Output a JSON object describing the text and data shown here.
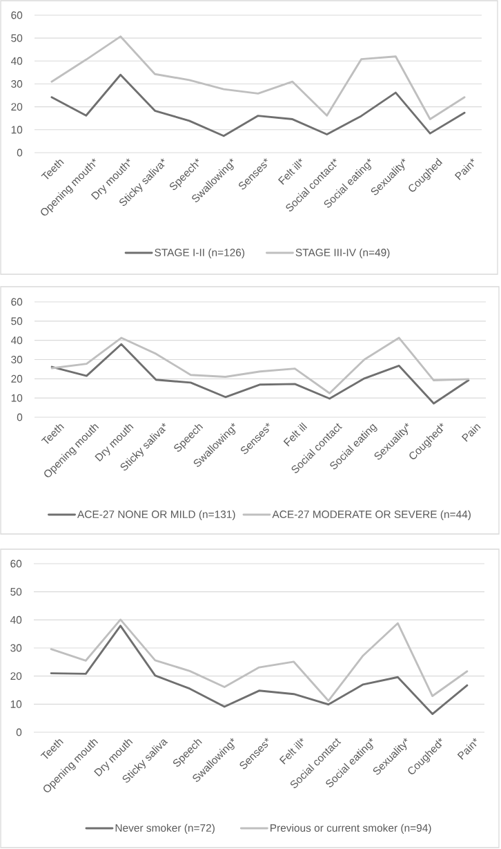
{
  "chart_data": [
    {
      "type": "line",
      "categories": [
        "Teeth",
        "Opening mouth*",
        "Dry mouth*",
        "Sticky saliva*",
        "Speech*",
        "Swallowing*",
        "Senses*",
        "Felt ill*",
        "Social contact*",
        "Social eating*",
        "Sexuality*",
        "Coughed",
        "Pain*"
      ],
      "series": [
        {
          "name": "STAGE I-II (n=126)",
          "color": "#6f6f6f",
          "values": [
            24.2,
            16.2,
            34.0,
            18.3,
            13.9,
            7.3,
            16.1,
            14.6,
            8.0,
            16.0,
            26.2,
            8.4,
            17.4
          ]
        },
        {
          "name": "STAGE III-IV (n=49)",
          "color": "#bfbfbf",
          "values": [
            31.0,
            40.6,
            50.7,
            34.3,
            31.7,
            27.7,
            25.8,
            31.0,
            16.2,
            40.8,
            42.0,
            14.6,
            24.2
          ]
        }
      ],
      "ylim": [
        0,
        60
      ],
      "yticks": [
        0,
        10,
        20,
        30,
        40,
        50,
        60
      ],
      "grid": "y",
      "legend": "bottom"
    },
    {
      "type": "line",
      "categories": [
        "Teeth",
        "Opening mouth",
        "Dry mouth",
        "Sticky saliva*",
        "Speech",
        "Swallowing*",
        "Senses*",
        "Felt ill",
        "Social contact",
        "Social eating",
        "Sexuality*",
        "Coughed*",
        "Pain"
      ],
      "series": [
        {
          "name": "ACE-27 NONE OR MILD (n=131)",
          "color": "#6f6f6f",
          "values": [
            26.2,
            21.5,
            38.0,
            19.5,
            18.0,
            10.5,
            17.0,
            17.3,
            9.7,
            20.2,
            26.8,
            7.2,
            19.2
          ]
        },
        {
          "name": "ACE-27 MODERATE OR SEVERE (n=44)",
          "color": "#bfbfbf",
          "values": [
            25.5,
            27.8,
            41.3,
            33.0,
            22.0,
            21.0,
            23.8,
            25.3,
            12.5,
            30.0,
            41.3,
            19.2,
            19.8
          ]
        }
      ],
      "ylim": [
        0,
        60
      ],
      "yticks": [
        0,
        10,
        20,
        30,
        40,
        50,
        60
      ],
      "grid": "y",
      "legend": "bottom"
    },
    {
      "type": "line",
      "categories": [
        "Teeth",
        "Opening mouth",
        "Dry mouth",
        "Sticky saliva",
        "Speech",
        "Swallowing*",
        "Senses*",
        "Felt ill*",
        "Social contact",
        "Social eating*",
        "Sexuality*",
        "Coughed*",
        "Pain*"
      ],
      "series": [
        {
          "name": "Never smoker (n=72)",
          "color": "#6f6f6f",
          "values": [
            21.0,
            20.8,
            37.9,
            20.2,
            15.5,
            9.1,
            14.8,
            13.6,
            9.9,
            17.0,
            19.6,
            6.5,
            16.7
          ]
        },
        {
          "name": "Previous or current smoker (n=94)",
          "color": "#bfbfbf",
          "values": [
            29.6,
            25.5,
            40.1,
            25.6,
            21.8,
            16.1,
            23.1,
            25.1,
            11.2,
            27.3,
            38.8,
            12.9,
            21.7
          ]
        }
      ],
      "ylim": [
        0,
        60
      ],
      "yticks": [
        0,
        10,
        20,
        30,
        40,
        50,
        60
      ],
      "grid": "y",
      "legend": "bottom"
    }
  ]
}
